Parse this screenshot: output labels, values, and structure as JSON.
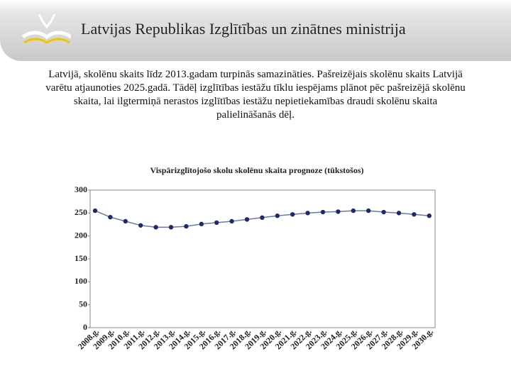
{
  "header": {
    "title": "Latvijas Republikas Izglītības un zinātnes ministrija"
  },
  "text": "Latvijā, skolēnu skaits līdz 2013.gadam turpinās samazināties. Pašreizējais skolēnu skaits Latvijā varētu atjaunoties 2025.gadā. Tādēļ izglītības iestāžu tīklu iespējams plānot pēc pašreizējā skolēnu skaita, lai ilgtermiņā nerastos izglītības iestāžu nepietiekamības draudi skolēnu skaita palielināšanās dēļ.",
  "chart_data": {
    "type": "line",
    "title": "Vispārizglītojošo skolu skolēnu skaita prognoze (tūkstošos)",
    "categories": [
      "2008.g.",
      "2009.g.",
      "2010.g.",
      "2011.g.",
      "2012.g.",
      "2013.g.",
      "2014.g.",
      "2015.g.",
      "2016.g.",
      "2017.g.",
      "2018.g.",
      "2019.g.",
      "2020.g.",
      "2021.g.",
      "2022.g.",
      "2023.g.",
      "2024.g.",
      "2025.g.",
      "2026.g.",
      "2027.g.",
      "2028.g.",
      "2029.g.",
      "2030.g."
    ],
    "values": [
      255,
      241,
      232,
      223,
      219,
      219,
      221,
      226,
      229,
      232,
      236,
      240,
      244,
      247,
      250,
      252,
      253,
      255,
      255,
      252,
      250,
      247,
      244
    ],
    "color": "#1f2a6e",
    "line_color": "#6b7a9a",
    "ylim": [
      0,
      300
    ],
    "yticks": [
      0,
      50,
      100,
      150,
      200,
      250,
      300
    ]
  }
}
